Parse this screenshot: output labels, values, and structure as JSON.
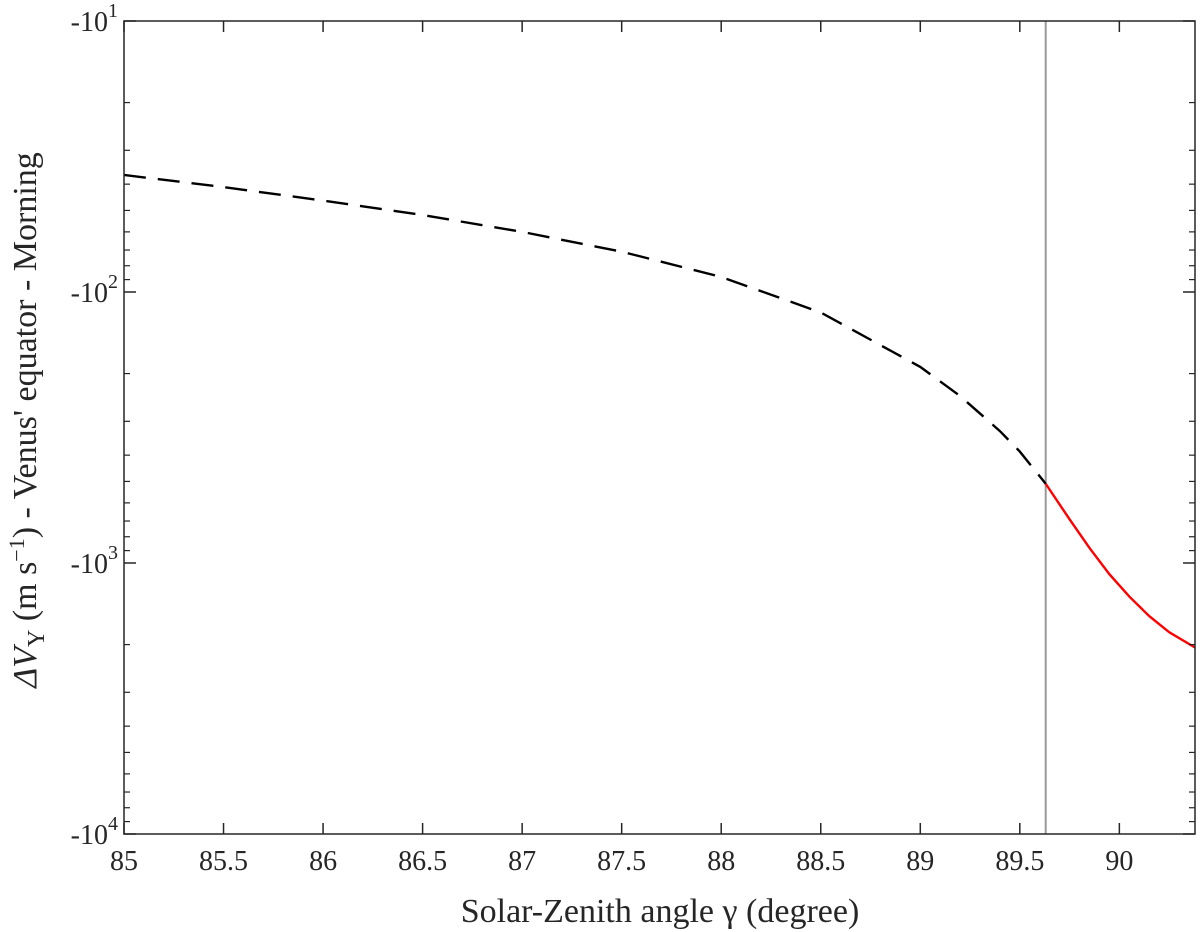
{
  "chart_data": {
    "type": "line",
    "xlabel": "Solar-Zenith angle γ (degree)",
    "ylabel": "ΔV_Y (m s⁻¹) - Venus' equator - Morning",
    "ylabel_parts": {
      "delta_v": "ΔV",
      "subscript": "Y",
      "units_open": " (m s",
      "units_exp": "−1",
      "units_close": ") - Venus' equator - Morning"
    },
    "xlim": [
      85,
      90.38
    ],
    "ylim": [
      -10,
      -10000
    ],
    "yscale": "log-negative",
    "grid": false,
    "x_ticks": [
      85,
      85.5,
      86,
      86.5,
      87,
      87.5,
      88,
      88.5,
      89,
      89.5,
      90
    ],
    "x_tick_labels": [
      "85",
      "85.5",
      "86",
      "86.5",
      "87",
      "87.5",
      "88",
      "88.5",
      "89",
      "89.5",
      "90"
    ],
    "y_ticks": [
      -10,
      -100,
      -1000,
      -10000
    ],
    "y_tick_labels": [
      {
        "base": "-10",
        "exp": "1"
      },
      {
        "base": "-10",
        "exp": "2"
      },
      {
        "base": "-10",
        "exp": "3"
      },
      {
        "base": "-10",
        "exp": "4"
      }
    ],
    "vertical_line": {
      "x": 89.63,
      "color": "#999999"
    },
    "series": [
      {
        "style": "dashed",
        "color": "#000000",
        "x": [
          85.0,
          85.5,
          86.0,
          86.5,
          87.0,
          87.5,
          88.0,
          88.5,
          89.0,
          89.2,
          89.4,
          89.5,
          89.63
        ],
        "y": [
          -37,
          -41,
          -46,
          -52,
          -60,
          -71,
          -88,
          -119,
          -189,
          -242,
          -326,
          -388,
          -510
        ]
      },
      {
        "style": "solid",
        "color": "#ff0000",
        "x": [
          89.63,
          89.75,
          89.85,
          89.95,
          90.05,
          90.15,
          90.25,
          90.38
        ],
        "y": [
          -510,
          -690,
          -880,
          -1100,
          -1330,
          -1570,
          -1800,
          -2050
        ]
      }
    ]
  }
}
